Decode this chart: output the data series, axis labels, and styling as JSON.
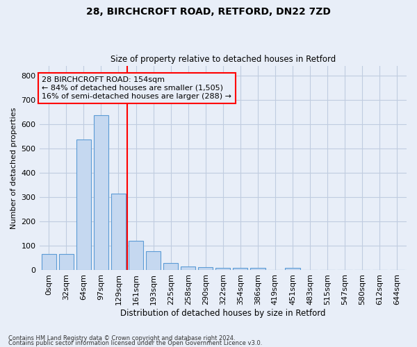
{
  "title1": "28, BIRCHCROFT ROAD, RETFORD, DN22 7ZD",
  "title2": "Size of property relative to detached houses in Retford",
  "xlabel": "Distribution of detached houses by size in Retford",
  "ylabel": "Number of detached properties",
  "footnote1": "Contains HM Land Registry data © Crown copyright and database right 2024.",
  "footnote2": "Contains public sector information licensed under the Open Government Licence v3.0.",
  "categories": [
    "0sqm",
    "32sqm",
    "64sqm",
    "97sqm",
    "129sqm",
    "161sqm",
    "193sqm",
    "225sqm",
    "258sqm",
    "290sqm",
    "322sqm",
    "354sqm",
    "386sqm",
    "419sqm",
    "451sqm",
    "483sqm",
    "515sqm",
    "547sqm",
    "580sqm",
    "612sqm",
    "644sqm"
  ],
  "values": [
    65,
    65,
    535,
    635,
    315,
    120,
    78,
    30,
    15,
    13,
    10,
    10,
    10,
    0,
    8,
    0,
    0,
    0,
    0,
    0,
    0
  ],
  "bar_color": "#c5d8f0",
  "bar_edge_color": "#5b9bd5",
  "red_line_index": 5,
  "annotation_line0": "28 BIRCHCROFT ROAD: 154sqm",
  "annotation_line1": "← 84% of detached houses are smaller (1,505)",
  "annotation_line2": "16% of semi-detached houses are larger (288) →",
  "bg_color": "#e8eef8",
  "plot_bg_color": "#e8eef8",
  "grid_color": "#c0cce0",
  "ylim": [
    0,
    840
  ],
  "yticks": [
    0,
    100,
    200,
    300,
    400,
    500,
    600,
    700,
    800
  ]
}
